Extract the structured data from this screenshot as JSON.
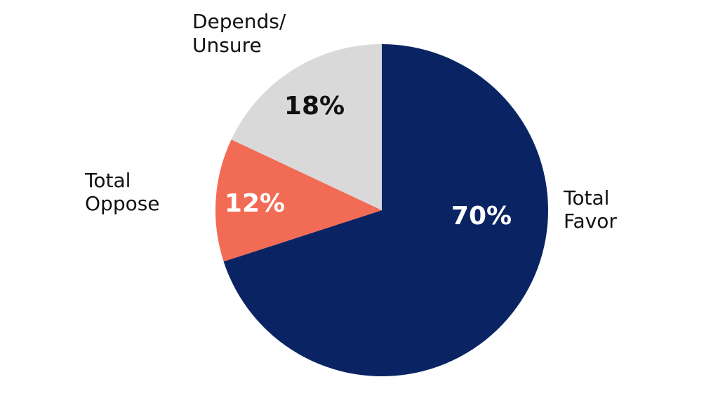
{
  "chart_data": {
    "type": "pie",
    "start_angle": "top",
    "direction": "clockwise",
    "slices": [
      {
        "label": [
          "Total",
          "Favor"
        ],
        "value": 70,
        "display": "70%",
        "color": "#0a2463",
        "label_color": "#ffffff"
      },
      {
        "label": [
          "Total",
          "Oppose"
        ],
        "value": 12,
        "display": "12%",
        "color": "#f26b55",
        "label_color": "#ffffff"
      },
      {
        "label": [
          "Depends/",
          "Unsure"
        ],
        "value": 18,
        "display": "18%",
        "color": "#d9d9d9",
        "label_color": "#111111"
      }
    ],
    "legend": "none"
  }
}
